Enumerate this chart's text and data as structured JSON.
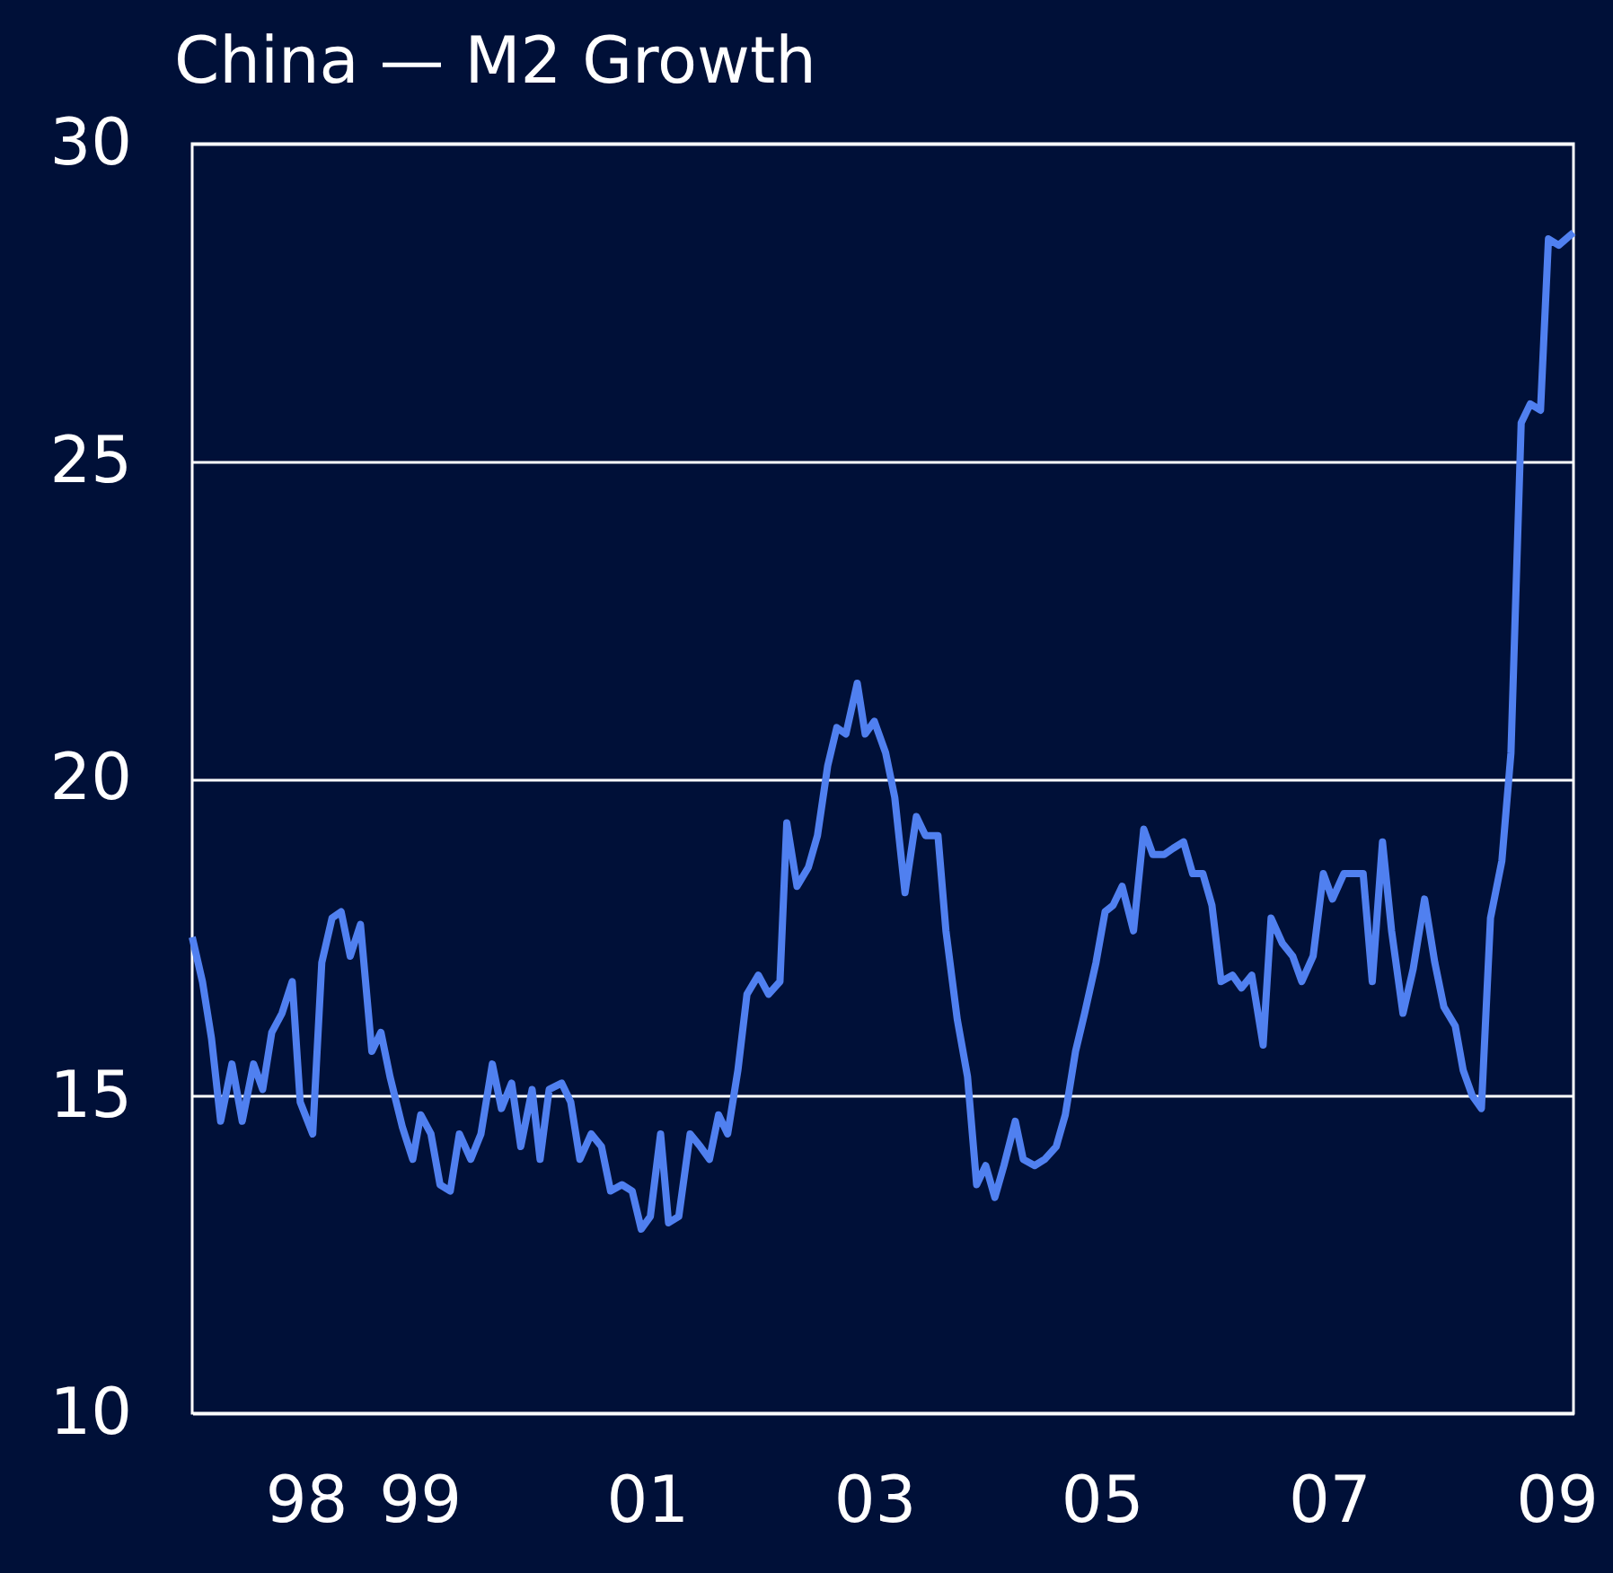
{
  "chart_data": {
    "type": "line",
    "title": "China — M2 Growth",
    "x": [
      1997.0,
      1997.09,
      1997.17,
      1997.25,
      1997.35,
      1997.44,
      1997.54,
      1997.62,
      1997.7,
      1997.79,
      1997.88,
      1997.95,
      1998.06,
      1998.14,
      1998.23,
      1998.31,
      1998.39,
      1998.48,
      1998.58,
      1998.66,
      1998.74,
      1998.85,
      1998.94,
      1999.01,
      1999.1,
      1999.18,
      1999.27,
      1999.35,
      1999.45,
      1999.54,
      1999.64,
      1999.72,
      1999.81,
      1999.89,
      1999.99,
      2000.06,
      2000.14,
      2000.25,
      2000.33,
      2000.41,
      2000.51,
      2000.6,
      2000.68,
      2000.78,
      2000.87,
      2000.95,
      2001.03,
      2001.12,
      2001.19,
      2001.28,
      2001.38,
      2001.47,
      2001.55,
      2001.63,
      2001.71,
      2001.8,
      2001.88,
      2001.98,
      2002.07,
      2002.17,
      2002.23,
      2002.32,
      2002.42,
      2002.5,
      2002.59,
      2002.67,
      2002.75,
      2002.85,
      2002.92,
      2003.0,
      2003.1,
      2003.18,
      2003.27,
      2003.37,
      2003.45,
      2003.56,
      2003.63,
      2003.73,
      2003.82,
      2003.9,
      2003.98,
      2004.06,
      2004.14,
      2004.24,
      2004.31,
      2004.41,
      2004.5,
      2004.6,
      2004.68,
      2004.77,
      2004.85,
      2004.95,
      2005.03,
      2005.1,
      2005.18,
      2005.28,
      2005.37,
      2005.45,
      2005.55,
      2005.63,
      2005.72,
      2005.8,
      2005.89,
      2005.97,
      2006.05,
      2006.15,
      2006.23,
      2006.32,
      2006.42,
      2006.49,
      2006.59,
      2006.68,
      2006.76,
      2006.86,
      2006.95,
      2007.03,
      2007.13,
      2007.24,
      2007.3,
      2007.38,
      2007.47,
      2007.55,
      2007.65,
      2007.74,
      2007.84,
      2007.93,
      2008.01,
      2008.11,
      2008.18,
      2008.26,
      2008.34,
      2008.42,
      2008.52,
      2008.6,
      2008.69,
      2008.77,
      2008.86,
      2008.93,
      2009.02,
      2009.15
    ],
    "series": [
      {
        "color": "#5080f0",
        "values": [
          17.5,
          16.8,
          15.9,
          14.6,
          15.5,
          14.6,
          15.5,
          15.1,
          16.0,
          16.3,
          16.8,
          14.9,
          14.4,
          17.1,
          17.8,
          17.9,
          17.2,
          17.7,
          15.7,
          16.0,
          15.3,
          14.5,
          14.0,
          14.7,
          14.4,
          13.6,
          13.5,
          14.4,
          14.0,
          14.4,
          15.5,
          14.8,
          15.2,
          14.2,
          15.1,
          14.0,
          15.1,
          15.2,
          14.9,
          14.0,
          14.4,
          14.2,
          13.5,
          13.6,
          13.5,
          12.9,
          13.1,
          14.4,
          13.0,
          13.1,
          14.4,
          14.2,
          14.0,
          14.7,
          14.4,
          15.4,
          16.6,
          16.9,
          16.6,
          16.8,
          19.3,
          18.3,
          18.6,
          19.1,
          20.2,
          20.8,
          20.7,
          21.5,
          20.7,
          20.9,
          20.4,
          19.7,
          18.2,
          19.4,
          19.1,
          19.1,
          17.6,
          16.2,
          15.3,
          13.6,
          13.9,
          13.4,
          13.9,
          14.6,
          14.0,
          13.9,
          14.0,
          14.2,
          14.7,
          15.7,
          16.3,
          17.1,
          17.9,
          18.0,
          18.3,
          17.6,
          19.2,
          18.8,
          18.8,
          18.9,
          19.0,
          18.5,
          18.5,
          18.0,
          16.8,
          16.9,
          16.7,
          16.9,
          15.8,
          17.8,
          17.4,
          17.2,
          16.8,
          17.2,
          18.5,
          18.1,
          18.5,
          18.5,
          18.5,
          16.8,
          19.0,
          17.6,
          16.3,
          17.0,
          18.1,
          17.1,
          16.4,
          16.1,
          15.4,
          15.0,
          14.8,
          17.8,
          18.7,
          20.4,
          25.6,
          25.9,
          25.8,
          28.5,
          28.4,
          28.6
        ]
      }
    ],
    "xlim": [
      1997.0,
      2009.15
    ],
    "xticks": [
      {
        "value": 1998,
        "label": "98"
      },
      {
        "value": 1999,
        "label": "99"
      },
      {
        "value": 2001,
        "label": "01"
      },
      {
        "value": 2003,
        "label": "03"
      },
      {
        "value": 2005,
        "label": "05"
      },
      {
        "value": 2007,
        "label": "07"
      },
      {
        "value": 2009,
        "label": "09"
      }
    ],
    "ylim": [
      10,
      30
    ],
    "yticks": [
      10,
      15,
      20,
      25,
      30
    ],
    "grid": "y",
    "line_style": "solid"
  }
}
